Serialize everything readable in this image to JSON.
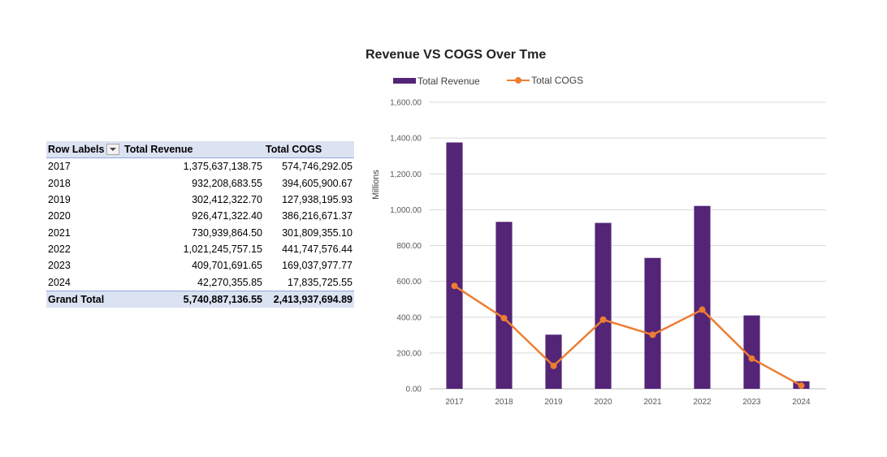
{
  "table": {
    "headers": [
      "Row Labels",
      "Total Revenue",
      "Total COGS"
    ],
    "rows": [
      [
        "2017",
        "1,375,637,138.75",
        "574,746,292.05"
      ],
      [
        "2018",
        "932,208,683.55",
        "394,605,900.67"
      ],
      [
        "2019",
        "302,412,322.70",
        "127,938,195.93"
      ],
      [
        "2020",
        "926,471,322.40",
        "386,216,671.37"
      ],
      [
        "2021",
        "730,939,864.50",
        "301,809,355.10"
      ],
      [
        "2022",
        "1,021,245,757.15",
        "441,747,576.44"
      ],
      [
        "2023",
        "409,701,691.65",
        "169,037,977.77"
      ],
      [
        "2024",
        "42,270,355.85",
        "17,835,725.55"
      ]
    ],
    "total": [
      "Grand Total",
      "5,740,887,136.55",
      "2,413,937,694.89"
    ]
  },
  "chart_data": {
    "type": "bar",
    "title": "Revenue VS COGS Over Tme",
    "ylabel": "Millions",
    "xlabel": "",
    "categories": [
      "2017",
      "2018",
      "2019",
      "2020",
      "2021",
      "2022",
      "2023",
      "2024"
    ],
    "series": [
      {
        "name": "Total Revenue",
        "type": "bar",
        "color": "#542477",
        "values": [
          1375.64,
          932.21,
          302.41,
          926.47,
          730.94,
          1021.25,
          409.7,
          42.27
        ]
      },
      {
        "name": "Total COGS",
        "type": "line",
        "color": "#ed7d31",
        "values": [
          574.75,
          394.61,
          127.94,
          386.22,
          301.81,
          441.75,
          169.04,
          17.84
        ]
      }
    ],
    "ylim": [
      0,
      1600
    ],
    "yticks": [
      "0.00",
      "200.00",
      "400.00",
      "600.00",
      "800.00",
      "1,000.00",
      "1,200.00",
      "1,400.00",
      "1,600.00"
    ],
    "grid": true,
    "legend_position": "top"
  }
}
